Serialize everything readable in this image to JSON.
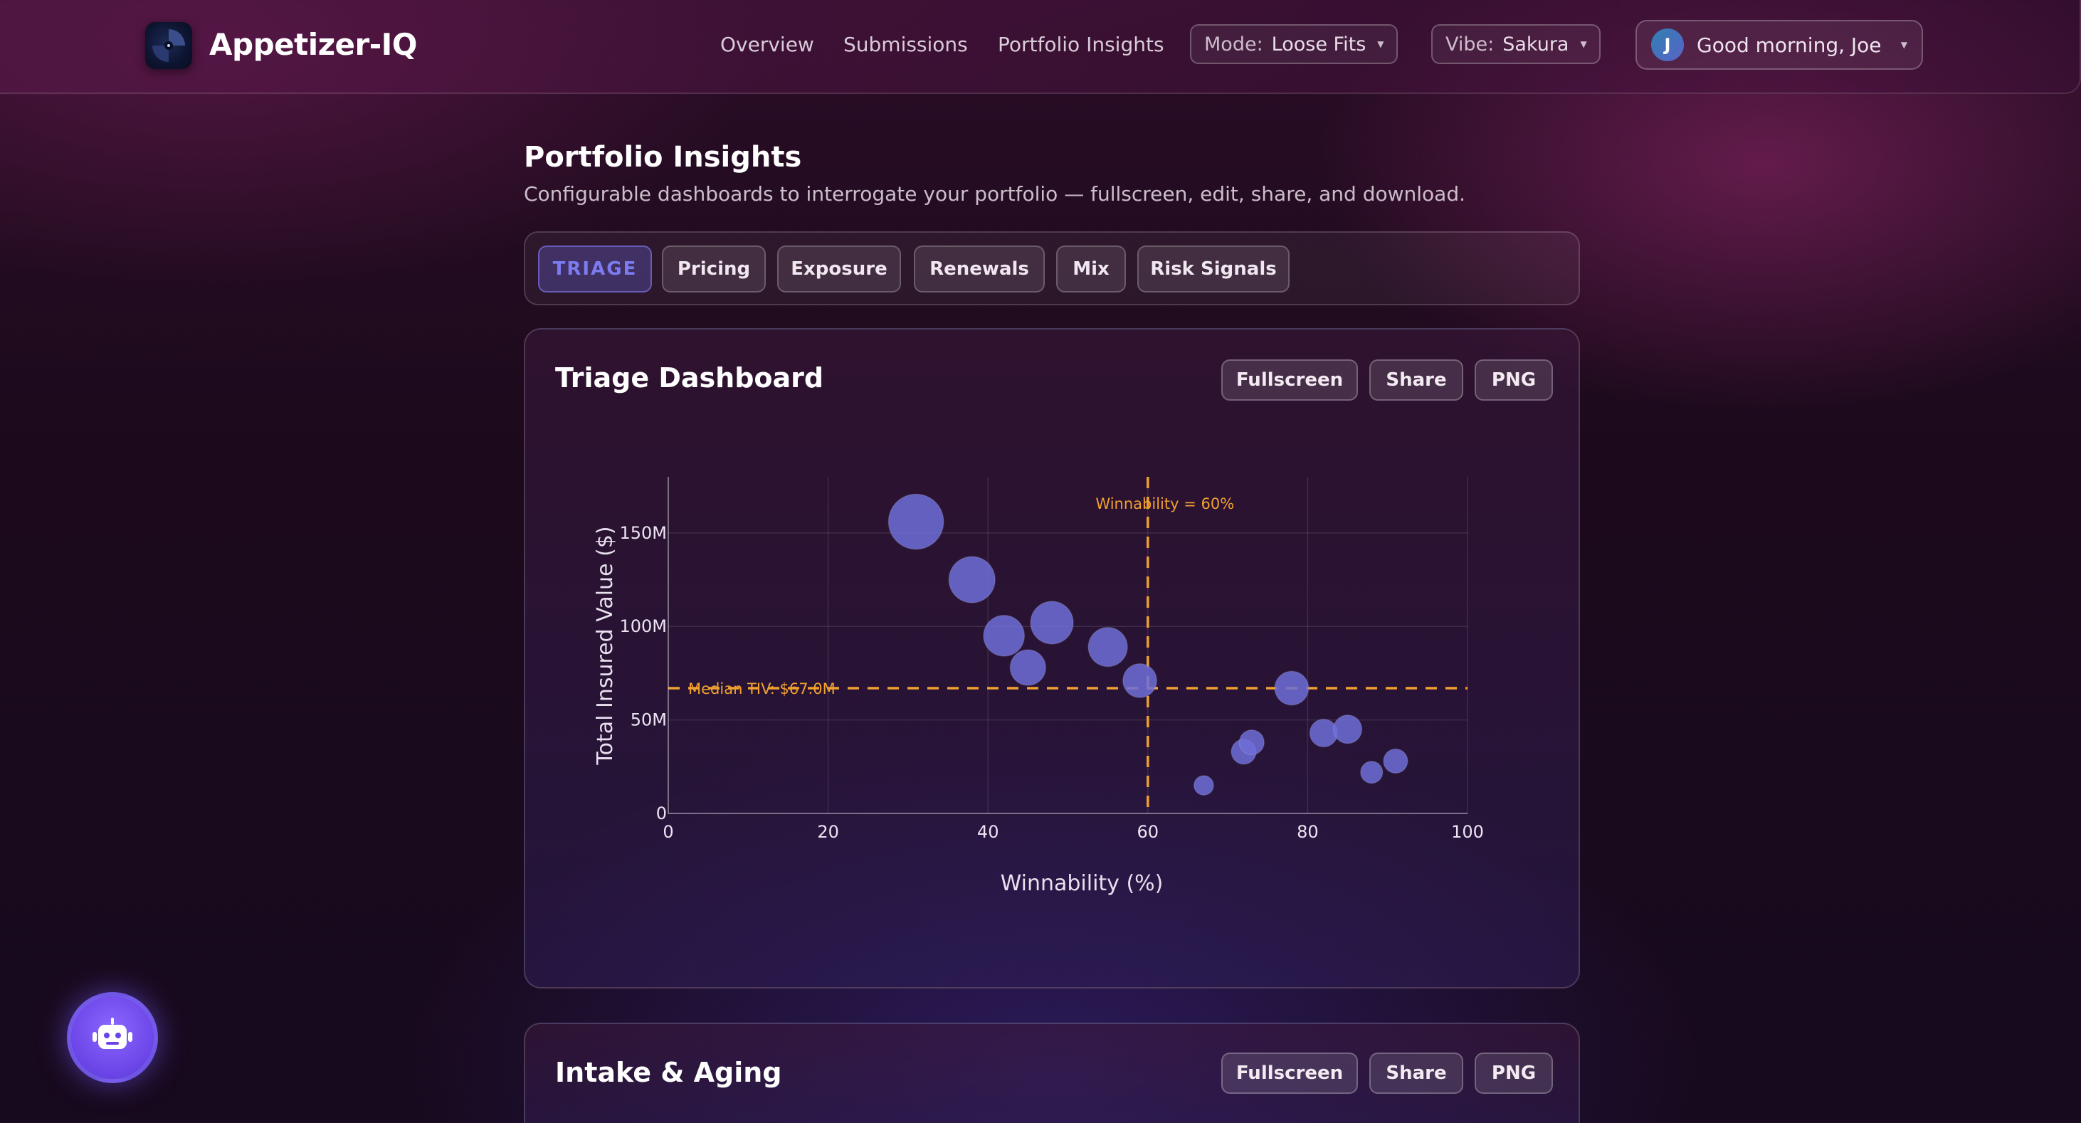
{
  "app": {
    "brand": "Appetizer-IQ",
    "nav": [
      "Overview",
      "Submissions",
      "Portfolio Insights"
    ],
    "mode": {
      "label": "Mode:",
      "value": "Loose Fits"
    },
    "vibe": {
      "label": "Vibe:",
      "value": "Sakura"
    },
    "user": {
      "initial": "J",
      "greeting": "Good morning, Joe"
    }
  },
  "page": {
    "title": "Portfolio Insights",
    "subtitle": "Configurable dashboards to interrogate your portfolio — fullscreen, edit, share, and download."
  },
  "tabs": [
    {
      "label": "TRIAGE",
      "active": true
    },
    {
      "label": "Pricing",
      "active": false
    },
    {
      "label": "Exposure",
      "active": false
    },
    {
      "label": "Renewals",
      "active": false
    },
    {
      "label": "Mix",
      "active": false
    },
    {
      "label": "Risk Signals",
      "active": false
    }
  ],
  "cards": [
    {
      "title": "Triage Dashboard",
      "buttons": [
        "Fullscreen",
        "Share",
        "PNG"
      ]
    },
    {
      "title": "Intake & Aging",
      "buttons": [
        "Fullscreen",
        "Share",
        "PNG"
      ]
    }
  ],
  "chart_data": {
    "type": "scatter",
    "title": "",
    "xlabel": "Winnability (%)",
    "ylabel": "Total Insured Value ($)",
    "xlim": [
      0,
      100
    ],
    "ylim": [
      0,
      180
    ],
    "x_ticks": [
      0,
      20,
      40,
      60,
      80,
      100
    ],
    "x_tick_labels": [
      "0",
      "20",
      "40",
      "60",
      "80",
      "100"
    ],
    "y_ticks": [
      0,
      50,
      100,
      150
    ],
    "y_tick_labels": [
      "0",
      "50M",
      "100M",
      "150M"
    ],
    "grid": true,
    "marker_color": "#6f6fd8",
    "reference_color": "#f0a030",
    "reference_lines": [
      {
        "axis": "x",
        "value": 60,
        "label": "Winnability = 60%"
      },
      {
        "axis": "y",
        "value": 67,
        "label": "Median TIV: $67.0M"
      }
    ],
    "points": [
      {
        "x": 31,
        "y": 156,
        "size": 155
      },
      {
        "x": 38,
        "y": 125,
        "size": 130
      },
      {
        "x": 42,
        "y": 95,
        "size": 115
      },
      {
        "x": 45,
        "y": 78,
        "size": 100
      },
      {
        "x": 48,
        "y": 102,
        "size": 120
      },
      {
        "x": 55,
        "y": 89,
        "size": 110
      },
      {
        "x": 59,
        "y": 71,
        "size": 95
      },
      {
        "x": 67,
        "y": 15,
        "size": 55
      },
      {
        "x": 72,
        "y": 33,
        "size": 70
      },
      {
        "x": 73,
        "y": 38,
        "size": 70
      },
      {
        "x": 78,
        "y": 67,
        "size": 95
      },
      {
        "x": 82,
        "y": 43,
        "size": 78
      },
      {
        "x": 85,
        "y": 45,
        "size": 80
      },
      {
        "x": 88,
        "y": 22,
        "size": 62
      },
      {
        "x": 91,
        "y": 28,
        "size": 68
      }
    ]
  }
}
